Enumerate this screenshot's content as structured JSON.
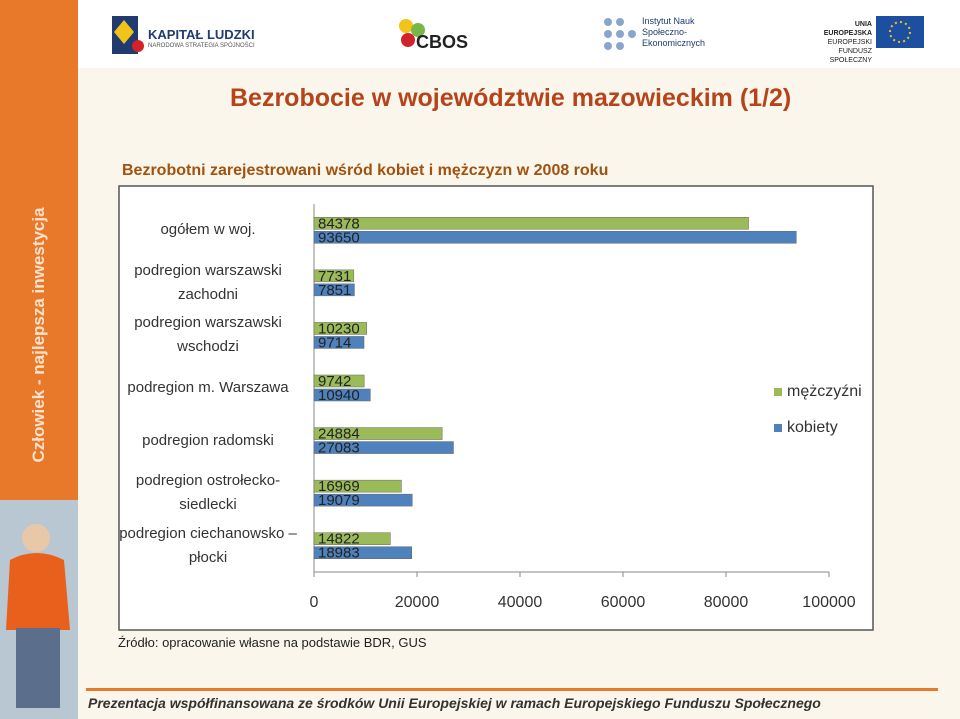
{
  "header": {
    "logos": [
      "KAPITAŁ LUDZKI",
      "NARODOWA STRATEGIA SPÓJNOŚCI",
      "CBOS",
      "Instytut Nauk",
      "Społeczno-",
      "Ekonomicznych",
      "UNIA EUROPEJSKA",
      "EUROPEJSKI",
      "FUNDUSZ SPOŁECZNY"
    ]
  },
  "side_text": "Człowiek - najlepsza inwestycja",
  "title": "Bezrobocie w województwie mazowieckim (1/2)",
  "subtitle": "Bezrobotni zarejestrowani wśród kobiet i mężczyzn w 2008 roku",
  "source": "Źródło: opracowanie własne na podstawie BDR, GUS",
  "footer": "Prezentacja współfinansowana ze środków Unii Europejskiej w ramach Europejskiego Funduszu Społecznego",
  "chart_data": {
    "type": "hbar",
    "categories": [
      "ogółem w woj.",
      "podregion warszawski zachodni",
      "podregion warszawski wschodzi",
      "podregion m. Warszawa",
      "podregion radomski",
      "podregion ostrołecko-siedlecki",
      "podregion ciechanowsko – płocki"
    ],
    "series": [
      {
        "name": "mężczyźni",
        "color": "#9bbb59",
        "values": [
          84378,
          7731,
          10230,
          9742,
          24884,
          16969,
          14822
        ]
      },
      {
        "name": "kobiety",
        "color": "#4f81bd",
        "values": [
          93650,
          7851,
          9714,
          10940,
          27083,
          19079,
          18983
        ]
      }
    ],
    "xlim": [
      0,
      100000
    ],
    "xticks": [
      0,
      20000,
      40000,
      60000,
      80000,
      100000
    ],
    "legend": "right"
  }
}
